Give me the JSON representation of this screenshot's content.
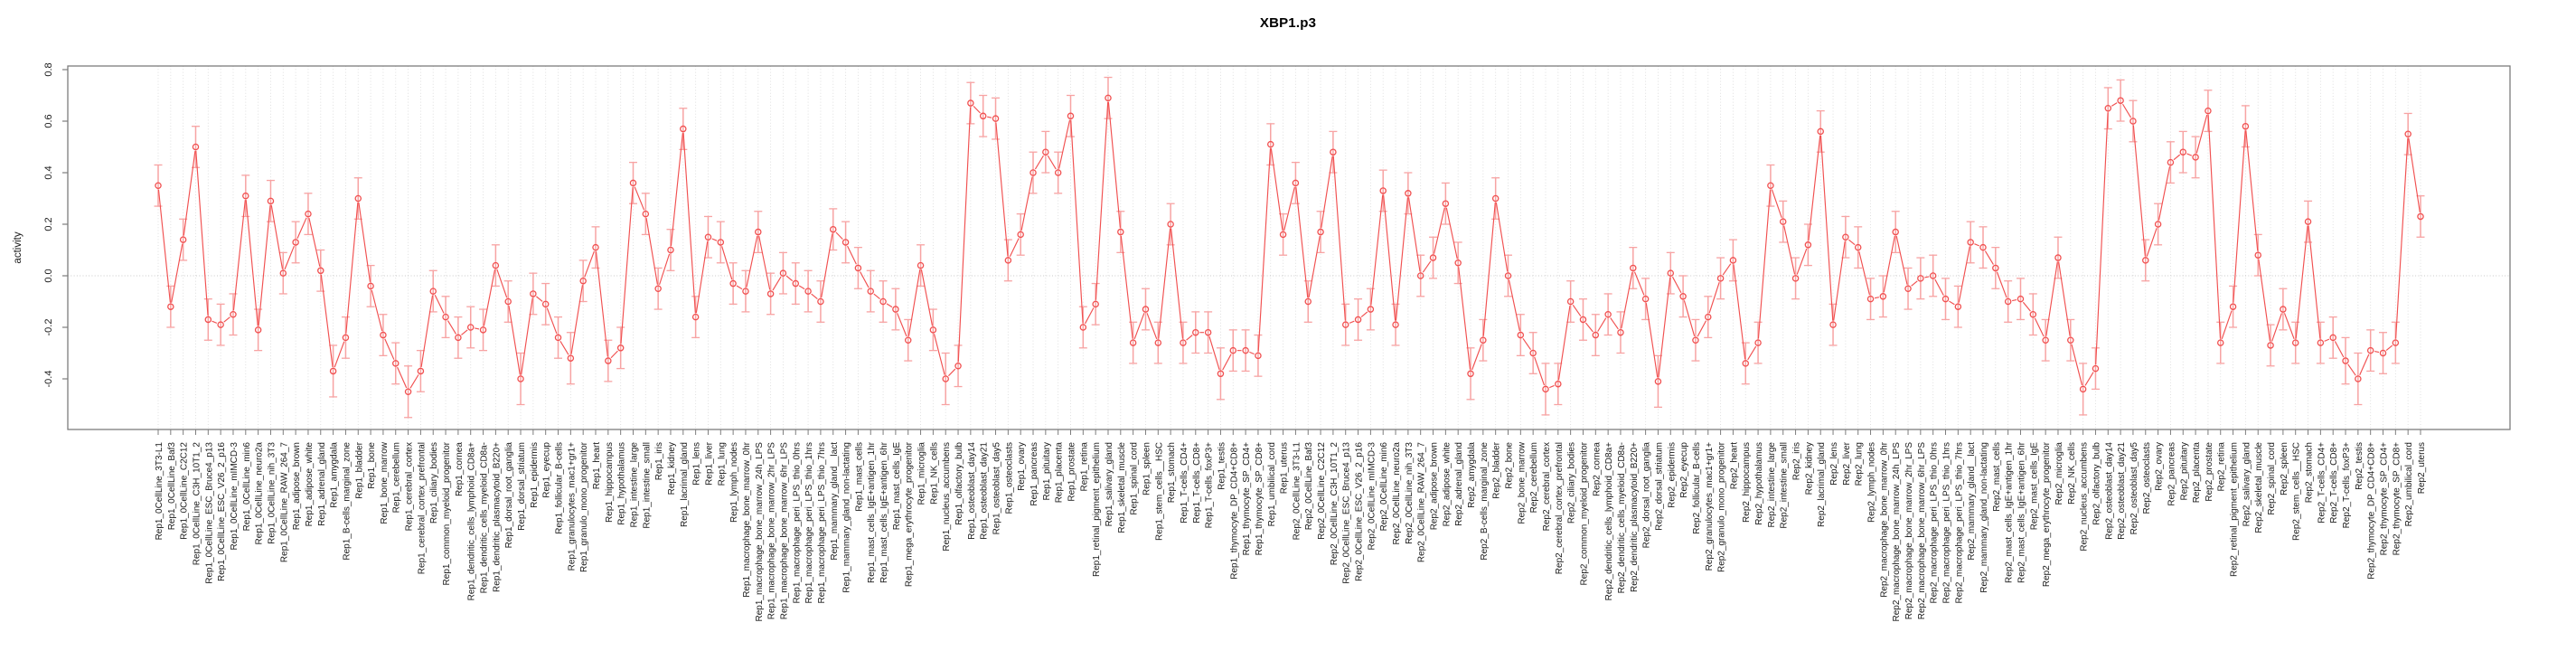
{
  "chart_data": {
    "type": "line",
    "title": "XBP1.p3",
    "xlabel": "",
    "ylabel": "activity",
    "marker": "open-circle",
    "error_bars": true,
    "legend": "none",
    "grid": "vertical dotted line per category; dotted horizontal line at zero",
    "ylim": [
      -0.6,
      0.81
    ],
    "yticks": [
      -0.4,
      -0.2,
      0.0,
      0.2,
      0.4,
      0.6,
      0.8
    ],
    "colors": {
      "series": "#f15050",
      "error_bar": "#f7a3a3",
      "grid_line": "#dcdcdc",
      "zero_line": "#c9c9c9",
      "box": "#7d7d7d",
      "tick": "#7d7d7d",
      "text": "#1a1a1a",
      "title": "#000000"
    },
    "categories": [
      "Rep1_0CellLine_3T3-L1",
      "Rep1_0CellLine_Baf3",
      "Rep1_0CellLine_C2C12",
      "Rep1_0CellLine_C3H_10T1_2",
      "Rep1_0CellLine_ESC_Bruce4_p13",
      "Rep1_0CellLine_ESC_V26_2_p16",
      "Rep1_0CellLine_mIMCD-3",
      "Rep1_0CellLine_min6",
      "Rep1_0CellLine_neuro2a",
      "Rep1_0CellLine_nih_3T3",
      "Rep1_0CellLine_RAW_264_7",
      "Rep1_adipose_brown",
      "Rep1_adipose_white",
      "Rep1_adrenal_gland",
      "Rep1_amygdala",
      "Rep1_B-cells_marginal_zone",
      "Rep1_bladder",
      "Rep1_bone",
      "Rep1_bone_marrow",
      "Rep1_cerebellum",
      "Rep1_cerebral_cortex",
      "Rep1_cerebral_cortex_prefrontal",
      "Rep1_ciliary_bodies",
      "Rep1_common_myeloid_progenitor",
      "Rep1_cornea",
      "Rep1_dendritic_cells_lymphoid_CD8a+",
      "Rep1_dendritic_cells_myeloid_CD8a-",
      "Rep1_dendritic_plasmacytoid_B220+",
      "Rep1_dorsal_root_ganglia",
      "Rep1_dorsal_striatum",
      "Rep1_epidermis",
      "Rep1_eyecup",
      "Rep1_follicular_B-cells",
      "Rep1_granulocytes_mac1+gr1+",
      "Rep1_granulo_mono_progenitor",
      "Rep1_heart",
      "Rep1_hippocampus",
      "Rep1_hypothalamus",
      "Rep1_intestine_large",
      "Rep1_intestine_small",
      "Rep1_iris",
      "Rep1_kidney",
      "Rep1_lacrimal_gland",
      "Rep1_lens",
      "Rep1_liver",
      "Rep1_lung",
      "Rep1_lymph_nodes",
      "Rep1_macrophage_bone_marrow_0hr",
      "Rep1_macrophage_bone_marrow_24h_LPS",
      "Rep1_macrophage_bone_marrow_2hr_LPS",
      "Rep1_macrophage_bone_marrow_6hr_LPS",
      "Rep1_macrophage_peri_LPS_thio_0hrs",
      "Rep1_macrophage_peri_LPS_thio_1hrs",
      "Rep1_macrophage_peri_LPS_thio_7hrs",
      "Rep1_mammary_gland__lact",
      "Rep1_mammary_gland_non-lactating",
      "Rep1_mast_cells",
      "Rep1_mast_cells_IgE+antigen_1hr",
      "Rep1_mast_cells_IgE+antigen_6hr",
      "Rep1_mast_cells_IgE",
      "Rep1_mega_erythrocyte_progenitor",
      "Rep1_microglia",
      "Rep1_NK_cells",
      "Rep1_nucleus_accumbens",
      "Rep1_olfactory_bulb",
      "Rep1_osteoblast_day14",
      "Rep1_osteoblast_day21",
      "Rep1_osteoblast_day5",
      "Rep1_osteoclasts",
      "Rep1_ovary",
      "Rep1_pancreas",
      "Rep1_pituitary",
      "Rep1_placenta",
      "Rep1_prostate",
      "Rep1_retina",
      "Rep1_retinal_pigment_epithelium",
      "Rep1_salivary_gland",
      "Rep1_skeletal_muscle",
      "Rep1_spinal_cord",
      "Rep1_spleen",
      "Rep1_stem_cells__HSC",
      "Rep1_stomach",
      "Rep1_T-cells_CD4+",
      "Rep1_T-cells_CD8+",
      "Rep1_T-cells_foxP3+",
      "Rep1_testis",
      "Rep1_thymocyte_DP_CD4+CD8+",
      "Rep1_thymocyte_SP_CD4+",
      "Rep1_thymocyte_SP_CD8+",
      "Rep1_umbilical_cord",
      "Rep1_uterus",
      "Rep2_0CellLine_3T3-L1",
      "Rep2_0CellLine_Baf3",
      "Rep2_0CellLine_C2C12",
      "Rep2_0CellLine_C3H_10T1_2",
      "Rep2_0CellLine_ESC_Bruce4_p13",
      "Rep2_0CellLine_ESC_V26_2_p16",
      "Rep2_0CellLine_mIMCD-3",
      "Rep2_0CellLine_min6",
      "Rep2_0CellLine_neuro2a",
      "Rep2_0CellLine_nih_3T3",
      "Rep2_0CellLine_RAW_264_7",
      "Rep2_adipose_brown",
      "Rep2_adipose_white",
      "Rep2_adrenal_gland",
      "Rep2_amygdala",
      "Rep2_B-cells_marginal_zone",
      "Rep2_bladder",
      "Rep2_bone",
      "Rep2_bone_marrow",
      "Rep2_cerebellum",
      "Rep2_cerebral_cortex",
      "Rep2_cerebral_cortex_prefrontal",
      "Rep2_ciliary_bodies",
      "Rep2_common_myeloid_progenitor",
      "Rep2_cornea",
      "Rep2_dendritic_cells_lymphoid_CD8a+",
      "Rep2_dendritic_cells_myeloid_CD8a-",
      "Rep2_dendritic_plasmacytoid_B220+",
      "Rep2_dorsal_root_ganglia",
      "Rep2_dorsal_striatum",
      "Rep2_epidermis",
      "Rep2_eyecup",
      "Rep2_follicular_B-cells",
      "Rep2_granulocytes_mac1+gr1+",
      "Rep2_granulo_mono_progenitor",
      "Rep2_heart",
      "Rep2_hippocampus",
      "Rep2_hypothalamus",
      "Rep2_intestine_large",
      "Rep2_intestine_small",
      "Rep2_iris",
      "Rep2_kidney",
      "Rep2_lacrimal_gland",
      "Rep2_lens",
      "Rep2_liver",
      "Rep2_lung",
      "Rep2_lymph_nodes",
      "Rep2_macrophage_bone_marrow_0hr",
      "Rep2_macrophage_bone_marrow_24h_LPS",
      "Rep2_macrophage_bone_marrow_2hr_LPS",
      "Rep2_macrophage_bone_marrow_6hr_LPS",
      "Rep2_macrophage_peri_LPS_thio_0hrs",
      "Rep2_macrophage_peri_LPS_thio_1hrs",
      "Rep2_macrophage_peri_LPS_thio_7hrs",
      "Rep2_mammary_gland__lact",
      "Rep2_mammary_gland_non-lactating",
      "Rep2_mast_cells",
      "Rep2_mast_cells_IgE+antigen_1hr",
      "Rep2_mast_cells_IgE+antigen_6hr",
      "Rep2_mast_cells_IgE",
      "Rep2_mega_erythrocyte_progenitor",
      "Rep2_microglia",
      "Rep2_NK_cells",
      "Rep2_nucleus_accumbens",
      "Rep2_olfactory_bulb",
      "Rep2_osteoblast_day14",
      "Rep2_osteoblast_day21",
      "Rep2_osteoblast_day5",
      "Rep2_osteoclasts",
      "Rep2_ovary",
      "Rep2_pancreas",
      "Rep2_pituitary",
      "Rep2_placenta",
      "Rep2_prostate",
      "Rep2_retina",
      "Rep2_retinal_pigment_epithelium",
      "Rep2_salivary_gland",
      "Rep2_skeletal_muscle",
      "Rep2_spinal_cord",
      "Rep2_spleen",
      "Rep2_stem_cells__HSC",
      "Rep2_stomach",
      "Rep2_T-cells_CD4+",
      "Rep2_T-cells_CD8+",
      "Rep2_T-cells_foxP3+",
      "Rep2_testis",
      "Rep2_thymocyte_DP_CD4+CD8+",
      "Rep2_thymocyte_SP_CD4+",
      "Rep2_thymocyte_SP_CD8+",
      "Rep2_umbilical_cord",
      "Rep2_uterus"
    ],
    "values": [
      0.35,
      -0.12,
      0.14,
      0.5,
      -0.17,
      -0.19,
      -0.15,
      0.31,
      -0.21,
      0.29,
      0.01,
      0.13,
      0.24,
      0.02,
      -0.37,
      -0.24,
      0.3,
      -0.04,
      -0.23,
      -0.34,
      -0.45,
      -0.37,
      -0.06,
      -0.16,
      -0.24,
      -0.2,
      -0.21,
      0.04,
      -0.1,
      -0.4,
      -0.07,
      -0.11,
      -0.24,
      -0.32,
      -0.02,
      0.11,
      -0.33,
      -0.28,
      0.36,
      0.24,
      -0.05,
      0.1,
      0.57,
      -0.16,
      0.15,
      0.13,
      -0.03,
      -0.06,
      0.17,
      -0.07,
      0.01,
      -0.03,
      -0.06,
      -0.1,
      0.18,
      0.13,
      0.03,
      -0.06,
      -0.1,
      -0.13,
      -0.25,
      0.04,
      -0.21,
      -0.4,
      -0.35,
      0.67,
      0.62,
      0.61,
      0.06,
      0.16,
      0.4,
      0.48,
      0.4,
      0.62,
      -0.2,
      -0.11,
      0.69,
      0.17,
      -0.26,
      -0.13,
      -0.26,
      0.2,
      -0.26,
      -0.22,
      -0.22,
      -0.38,
      -0.29,
      -0.29,
      -0.31,
      0.51,
      0.16,
      0.36,
      -0.1,
      0.17,
      0.48,
      -0.19,
      -0.17,
      -0.13,
      0.33,
      -0.19,
      0.32,
      0.0,
      0.07,
      0.28,
      0.05,
      -0.38,
      -0.25,
      0.3,
      0.0,
      -0.23,
      -0.3,
      -0.44,
      -0.42,
      -0.1,
      -0.17,
      -0.23,
      -0.15,
      -0.22,
      0.03,
      -0.09,
      -0.41,
      0.01,
      -0.08,
      -0.25,
      -0.16,
      -0.01,
      0.06,
      -0.34,
      -0.26,
      0.35,
      0.21,
      -0.01,
      0.12,
      0.56,
      -0.19,
      0.15,
      0.11,
      -0.09,
      -0.08,
      0.17,
      -0.05,
      -0.01,
      0.0,
      -0.09,
      -0.12,
      0.13,
      0.11,
      0.03,
      -0.1,
      -0.09,
      -0.15,
      -0.25,
      0.07,
      -0.25,
      -0.44,
      -0.36,
      0.65,
      0.68,
      0.6,
      0.06,
      0.2,
      0.44,
      0.48,
      0.46,
      0.64,
      -0.26,
      -0.12,
      0.58,
      0.08,
      -0.27,
      -0.13,
      -0.26,
      0.21,
      -0.26,
      -0.24,
      -0.33,
      -0.4,
      -0.29,
      -0.3,
      -0.26,
      0.55,
      0.23
    ],
    "errors": [
      0.08,
      0.08,
      0.08,
      0.08,
      0.08,
      0.08,
      0.08,
      0.08,
      0.08,
      0.08,
      0.08,
      0.08,
      0.08,
      0.08,
      0.1,
      0.08,
      0.08,
      0.08,
      0.08,
      0.08,
      0.1,
      0.08,
      0.08,
      0.08,
      0.08,
      0.08,
      0.08,
      0.08,
      0.08,
      0.1,
      0.08,
      0.08,
      0.08,
      0.1,
      0.08,
      0.08,
      0.08,
      0.08,
      0.08,
      0.08,
      0.08,
      0.08,
      0.08,
      0.08,
      0.08,
      0.08,
      0.08,
      0.08,
      0.08,
      0.08,
      0.08,
      0.08,
      0.08,
      0.08,
      0.08,
      0.08,
      0.08,
      0.08,
      0.08,
      0.08,
      0.08,
      0.08,
      0.08,
      0.1,
      0.08,
      0.08,
      0.08,
      0.08,
      0.08,
      0.08,
      0.08,
      0.08,
      0.08,
      0.08,
      0.08,
      0.08,
      0.08,
      0.08,
      0.08,
      0.08,
      0.08,
      0.08,
      0.08,
      0.08,
      0.08,
      0.1,
      0.08,
      0.08,
      0.08,
      0.08,
      0.08,
      0.08,
      0.08,
      0.08,
      0.08,
      0.08,
      0.08,
      0.08,
      0.08,
      0.08,
      0.08,
      0.08,
      0.08,
      0.08,
      0.08,
      0.1,
      0.08,
      0.08,
      0.08,
      0.08,
      0.08,
      0.1,
      0.08,
      0.08,
      0.08,
      0.08,
      0.08,
      0.08,
      0.08,
      0.08,
      0.1,
      0.08,
      0.08,
      0.08,
      0.08,
      0.08,
      0.08,
      0.08,
      0.08,
      0.08,
      0.08,
      0.08,
      0.08,
      0.08,
      0.08,
      0.08,
      0.08,
      0.08,
      0.08,
      0.08,
      0.08,
      0.08,
      0.08,
      0.08,
      0.08,
      0.08,
      0.08,
      0.08,
      0.08,
      0.08,
      0.08,
      0.08,
      0.08,
      0.08,
      0.1,
      0.08,
      0.08,
      0.08,
      0.08,
      0.08,
      0.08,
      0.08,
      0.08,
      0.08,
      0.08,
      0.08,
      0.08,
      0.08,
      0.08,
      0.08,
      0.08,
      0.08,
      0.08,
      0.08,
      0.08,
      0.09,
      0.1,
      0.08,
      0.08,
      0.08,
      0.08,
      0.08
    ]
  }
}
